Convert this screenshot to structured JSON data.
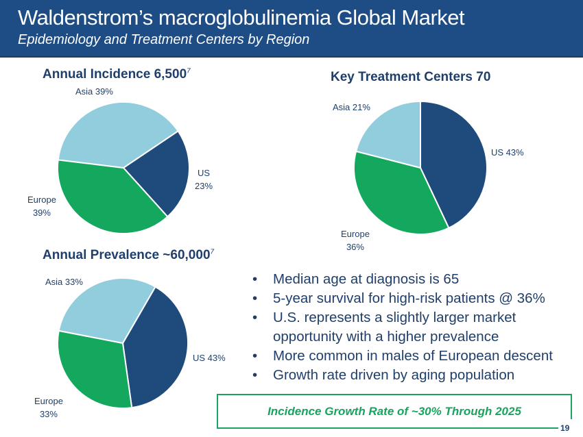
{
  "header": {
    "title": "Waldenstrom’s macroglobulinemia Global Market",
    "subtitle": "Epidemiology and Treatment Centers by Region"
  },
  "colors": {
    "us": "#1f4a7c",
    "europe": "#14a85f",
    "asia": "#92cddd",
    "header": "#1d4d84",
    "accent": "#1aa35f"
  },
  "chart_data": [
    {
      "type": "pie",
      "title": "Annual Incidence 6,500",
      "title_superscript": "7",
      "categories": [
        "US",
        "Europe",
        "Asia"
      ],
      "values": [
        23,
        39,
        39
      ],
      "labels": [
        "US 23%",
        "Europe 39%",
        "Asia 39%"
      ]
    },
    {
      "type": "pie",
      "title": "Key Treatment Centers 70",
      "categories": [
        "US",
        "Europe",
        "Asia"
      ],
      "values": [
        43,
        36,
        21
      ],
      "labels": [
        "US 43%",
        "Europe 36%",
        "Asia 21%"
      ]
    },
    {
      "type": "pie",
      "title": "Annual Prevalence ~60,000",
      "title_superscript": "7",
      "categories": [
        "US",
        "Europe",
        "Asia"
      ],
      "values": [
        43,
        33,
        33
      ],
      "labels": [
        "US 43%",
        "Europe 33%",
        "Asia 33%"
      ]
    }
  ],
  "pie_labels": {
    "p1": {
      "us_a": "US",
      "us_b": "23%",
      "eu_a": "Europe",
      "eu_b": "39%",
      "asia": "Asia 39%"
    },
    "p2": {
      "us": "US 43%",
      "eu_a": "Europe",
      "eu_b": "36%",
      "asia": "Asia 21%"
    },
    "p3": {
      "us": "US 43%",
      "eu_a": "Europe",
      "eu_b": "33%",
      "asia": "Asia 33%"
    }
  },
  "bullets": [
    "Median age at diagnosis is 65",
    "5-year survival for high-risk patients @ 36%",
    "U.S. represents a slightly larger market opportunity with a higher prevalence",
    "More common in males of European descent",
    "Growth rate driven by aging population"
  ],
  "callout": "Incidence Growth Rate of ~30% Through 2025",
  "page_number": "19"
}
